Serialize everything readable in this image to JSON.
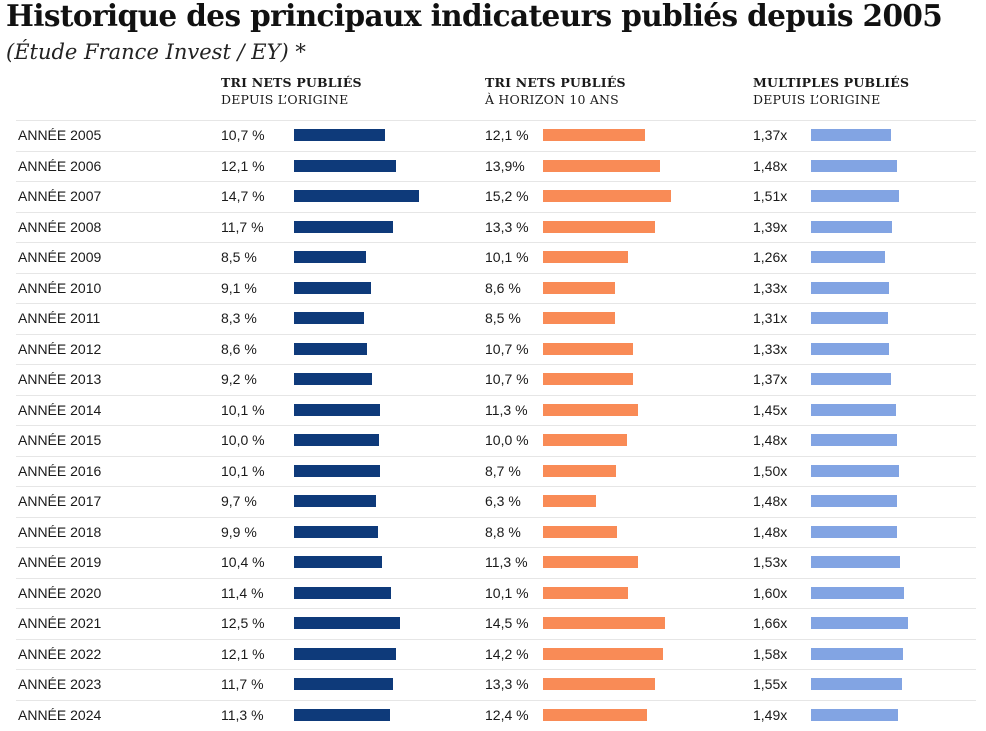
{
  "title": "Historique des principaux indicateurs publiés depuis 2005",
  "subtitle": "(Étude France Invest / EY) *",
  "columns": [
    {
      "line1": "TRI NETS PUBLIÉS",
      "line2": "DEPUIS L’ORIGINE"
    },
    {
      "line1": "TRI NETS PUBLIÉS",
      "line2": "À HORIZON 10 ANS"
    },
    {
      "line1": "MULTIPLES PUBLIÉS",
      "line2": "DEPUIS L’ORIGINE"
    }
  ],
  "colors": {
    "col1": "#0e3a7a",
    "col2": "#f98b56",
    "col3": "#82a4e3"
  },
  "chart_data": {
    "type": "bar",
    "orientation": "horizontal",
    "title": "Historique des principaux indicateurs publiés depuis 2005",
    "categories": [
      "ANNÉE 2005",
      "ANNÉE 2006",
      "ANNÉE 2007",
      "ANNÉE 2008",
      "ANNÉE 2009",
      "ANNÉE 2010",
      "ANNÉE 2011",
      "ANNÉE 2012",
      "ANNÉE 2013",
      "ANNÉE 2014",
      "ANNÉE 2015",
      "ANNÉE 2016",
      "ANNÉE 2017",
      "ANNÉE 2018",
      "ANNÉE 2019",
      "ANNÉE 2020",
      "ANNÉE 2021",
      "ANNÉE 2022",
      "ANNÉE 2023",
      "ANNÉE 2024"
    ],
    "series": [
      {
        "name": "TRI NETS PUBLIÉS DEPUIS L’ORIGINE",
        "unit": "%",
        "values": [
          10.7,
          12.1,
          14.7,
          11.7,
          8.5,
          9.1,
          8.3,
          8.6,
          9.2,
          10.1,
          10.0,
          10.1,
          9.7,
          9.9,
          10.4,
          11.4,
          12.5,
          12.1,
          11.7,
          11.3
        ],
        "labels": [
          "10,7 %",
          "12,1 %",
          "14,7 %",
          "11,7 %",
          "8,5 %",
          "9,1 %",
          "8,3 %",
          "8,6 %",
          "9,2 %",
          "10,1 %",
          "10,0 %",
          "10,1 %",
          "9,7 %",
          "9,9 %",
          "10,4 %",
          "11,4 %",
          "12,5 %",
          "12,1 %",
          "11,7 %",
          "11,3 %"
        ]
      },
      {
        "name": "TRI NETS PUBLIÉS À HORIZON 10 ANS",
        "unit": "%",
        "values": [
          12.1,
          13.9,
          15.2,
          13.3,
          10.1,
          8.6,
          8.5,
          10.7,
          10.7,
          11.3,
          10.0,
          8.7,
          6.3,
          8.8,
          11.3,
          10.1,
          14.5,
          14.2,
          13.3,
          12.4
        ],
        "labels": [
          "12,1 %",
          "13,9%",
          "15,2 %",
          "13,3 %",
          "10,1 %",
          "8,6 %",
          "8,5 %",
          "10,7 %",
          "10,7 %",
          "11,3 %",
          "10,0 %",
          "8,7 %",
          "6,3 %",
          "8,8 %",
          "11,3 %",
          "10,1 %",
          "14,5 %",
          "14,2 %",
          "13,3 %",
          "12,4 %"
        ]
      },
      {
        "name": "MULTIPLES PUBLIÉS DEPUIS L’ORIGINE",
        "unit": "x",
        "values": [
          1.37,
          1.48,
          1.51,
          1.39,
          1.26,
          1.33,
          1.31,
          1.33,
          1.37,
          1.45,
          1.48,
          1.5,
          1.48,
          1.48,
          1.53,
          1.6,
          1.66,
          1.58,
          1.55,
          1.49
        ],
        "labels": [
          "1,37x",
          "1,48x",
          "1,51x",
          "1,39x",
          "1,26x",
          "1,33x",
          "1,31x",
          "1,33x",
          "1,37x",
          "1,45x",
          "1,48x",
          "1,50x",
          "1,48x",
          "1,48x",
          "1,53x",
          "1,60x",
          "1,66x",
          "1,58x",
          "1,55x",
          "1,49x"
        ]
      }
    ]
  }
}
